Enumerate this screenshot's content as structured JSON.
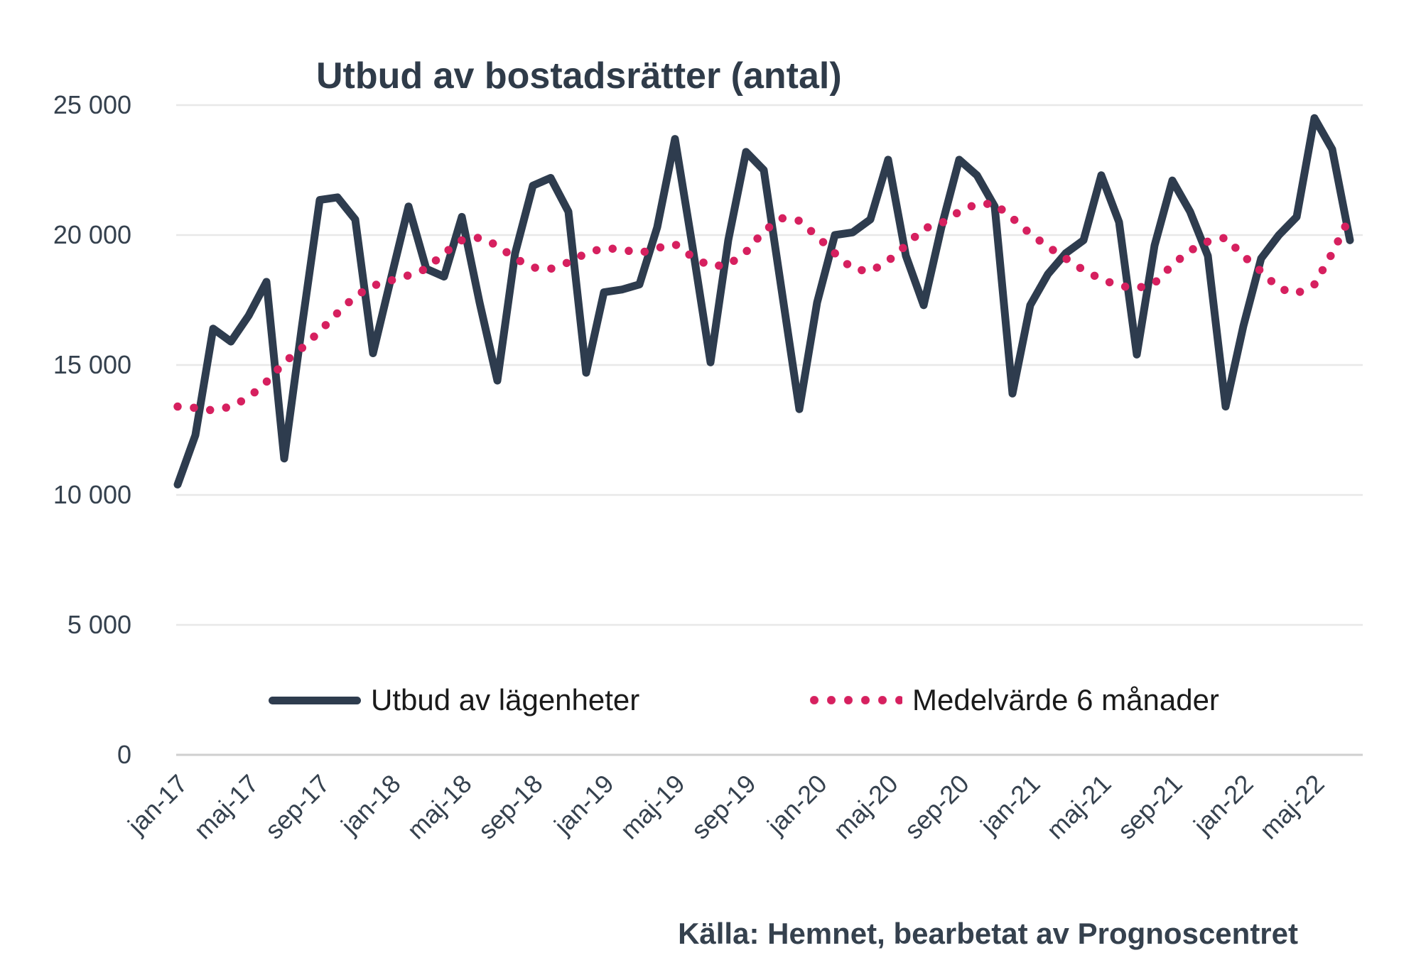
{
  "title": "Utbud av bostadsrätter (antal)",
  "source": "Källa: Hemnet, bearbetat av Prognoscentret",
  "colors": {
    "line_main": "#2e3c4e",
    "line_avg": "#d6205f",
    "gridline": "#e8e8e8",
    "axis_line": "#cfcfcf",
    "text": "#35414e"
  },
  "legend": {
    "entries": [
      {
        "label": "Utbud av lägenheter",
        "style": "solid",
        "color": "#2e3c4e"
      },
      {
        "label": "Medelvärde 6 månader",
        "style": "dotted",
        "color": "#d6205f"
      }
    ]
  },
  "chart_data": {
    "type": "line",
    "title": "Utbud av bostadsrätter (antal)",
    "xlabel": "",
    "ylabel": "",
    "ylim": [
      0,
      25000
    ],
    "grid": true,
    "legend_position": "bottom",
    "y_ticks": [
      {
        "value": 0,
        "label": "0"
      },
      {
        "value": 5000,
        "label": "5 000"
      },
      {
        "value": 10000,
        "label": "10 000"
      },
      {
        "value": 15000,
        "label": "15 000"
      },
      {
        "value": 20000,
        "label": "20 000"
      },
      {
        "value": 25000,
        "label": "25 000"
      }
    ],
    "x_tick_every": 4,
    "x": [
      "jan-17",
      "feb-17",
      "mar-17",
      "apr-17",
      "maj-17",
      "jun-17",
      "jul-17",
      "aug-17",
      "sep-17",
      "okt-17",
      "nov-17",
      "dec-17",
      "jan-18",
      "feb-18",
      "mar-18",
      "apr-18",
      "maj-18",
      "jun-18",
      "jul-18",
      "aug-18",
      "sep-18",
      "okt-18",
      "nov-18",
      "dec-18",
      "jan-19",
      "feb-19",
      "mar-19",
      "apr-19",
      "maj-19",
      "jun-19",
      "jul-19",
      "aug-19",
      "sep-19",
      "okt-19",
      "nov-19",
      "dec-19",
      "jan-20",
      "feb-20",
      "mar-20",
      "apr-20",
      "maj-20",
      "jun-20",
      "jul-20",
      "aug-20",
      "sep-20",
      "okt-20",
      "nov-20",
      "dec-20",
      "jan-21",
      "feb-21",
      "mar-21",
      "apr-21",
      "maj-21",
      "jun-21",
      "jul-21",
      "aug-21",
      "sep-21",
      "okt-21",
      "nov-21",
      "dec-21",
      "jan-22",
      "feb-22",
      "mar-22",
      "apr-22",
      "maj-22",
      "jun-22",
      "jul-22"
    ],
    "series": [
      {
        "name": "Utbud av lägenheter",
        "style": "solid",
        "color": "#2e3c4e",
        "values": [
          10400,
          12300,
          16400,
          15900,
          16900,
          18200,
          11400,
          16500,
          21350,
          21450,
          20600,
          15450,
          18300,
          21100,
          18700,
          18400,
          20700,
          17400,
          14400,
          19300,
          21900,
          22200,
          20900,
          14700,
          17800,
          17900,
          18100,
          20300,
          23700,
          19500,
          15100,
          19800,
          23200,
          22500,
          17900,
          13300,
          17400,
          20000,
          20100,
          20600,
          22900,
          19200,
          17300,
          20300,
          22900,
          22300,
          21100,
          13900,
          17300,
          18500,
          19300,
          19800,
          22300,
          20500,
          15400,
          19600,
          22100,
          20900,
          19200,
          13400,
          16500,
          19100,
          20000,
          20700,
          24500,
          23300,
          19800
        ]
      },
      {
        "name": "Medelvärde 6 månader",
        "style": "dotted",
        "color": "#d6205f",
        "values": [
          13400,
          13350,
          13250,
          13400,
          13750,
          14350,
          15100,
          15650,
          16300,
          17000,
          17650,
          18050,
          18250,
          18450,
          18700,
          19300,
          19800,
          19900,
          19600,
          19100,
          18750,
          18700,
          18950,
          19300,
          19500,
          19450,
          19300,
          19500,
          19650,
          19150,
          18800,
          18850,
          19350,
          20150,
          20650,
          20550,
          19950,
          19300,
          18700,
          18600,
          19000,
          19600,
          20250,
          20450,
          20900,
          21200,
          21200,
          20650,
          20050,
          19550,
          19100,
          18650,
          18300,
          18050,
          17950,
          18150,
          18850,
          19400,
          19750,
          19900,
          19200,
          18600,
          17950,
          17750,
          18100,
          19300,
          20700
        ]
      }
    ]
  }
}
